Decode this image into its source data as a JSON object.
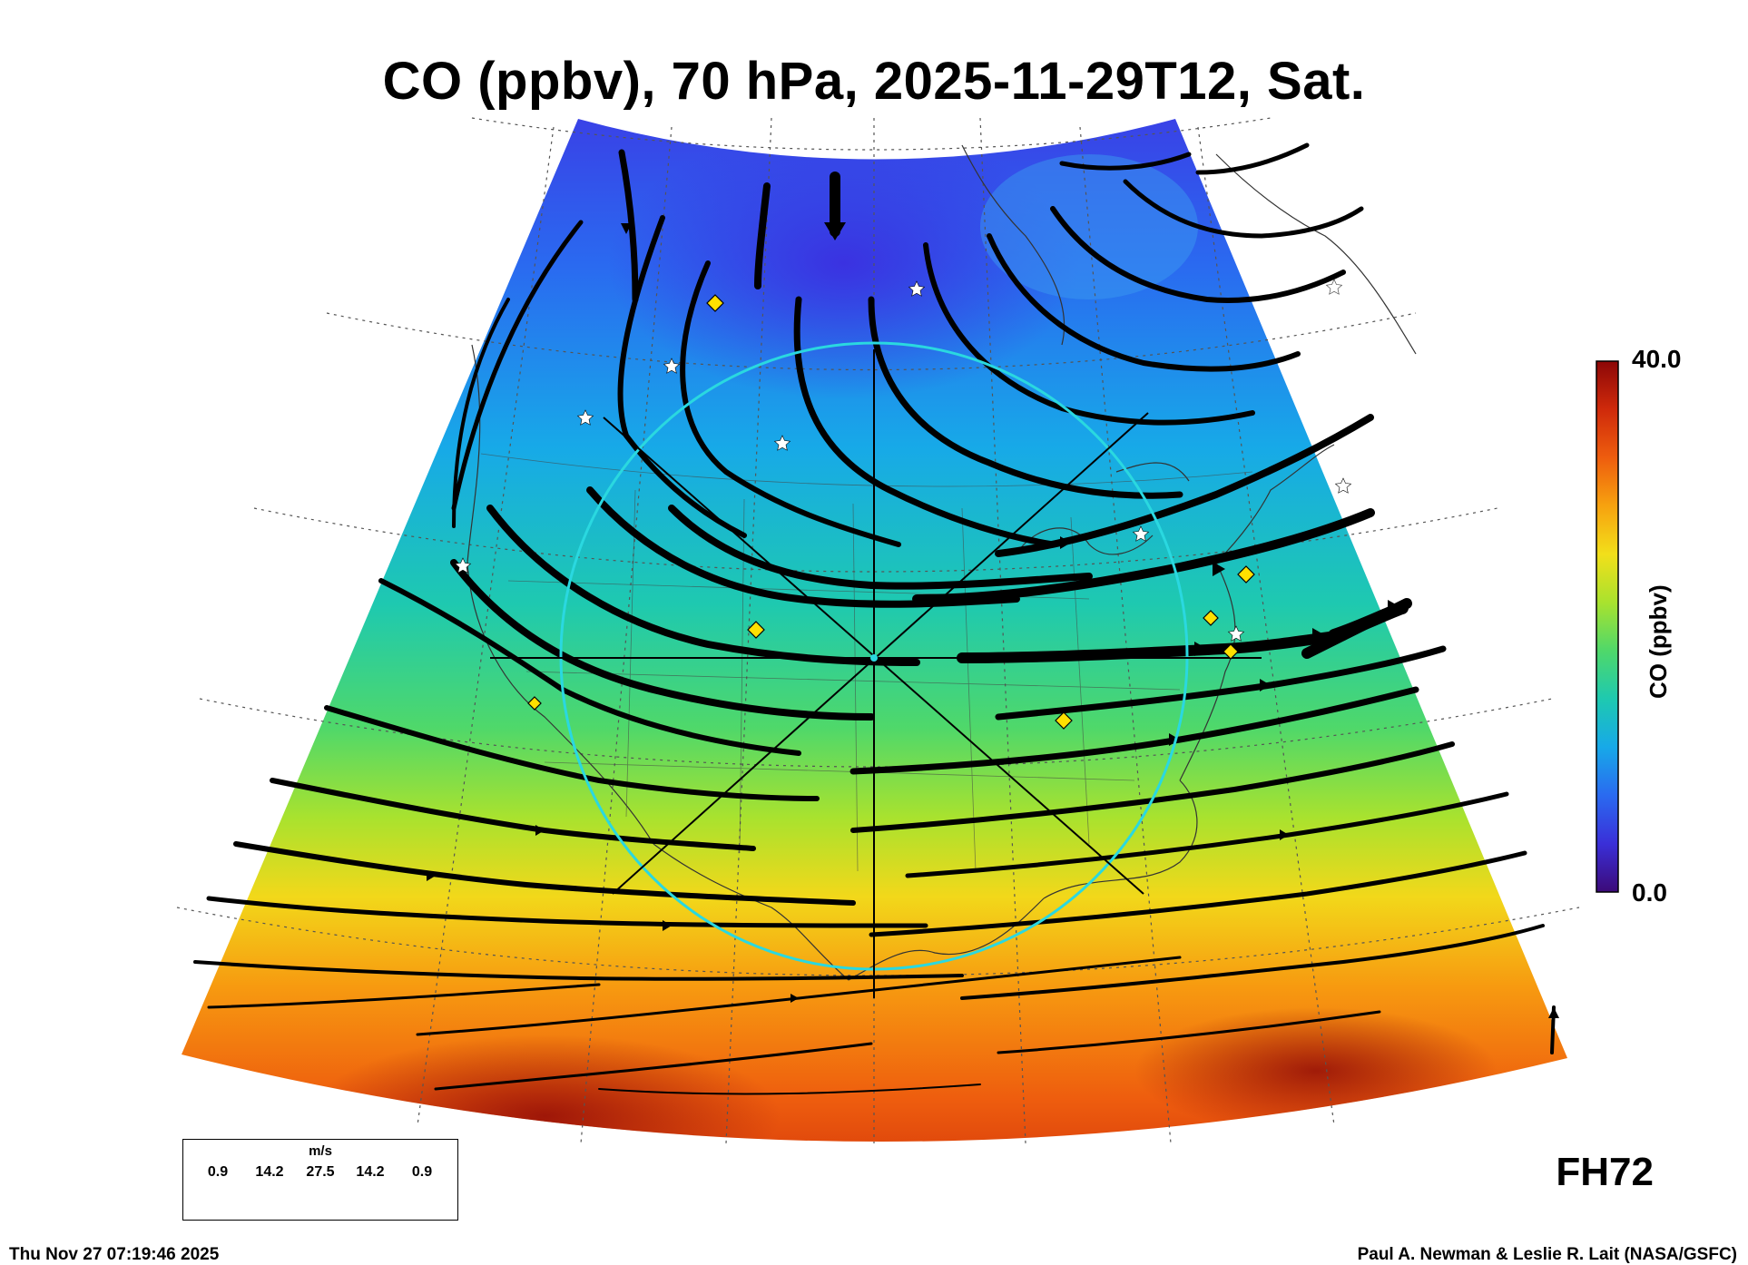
{
  "title": "CO (ppbv), 70 hPa, 2025-11-29T12, Sat.",
  "colorbar": {
    "label": "CO (ppbv)",
    "max_label": "40.0",
    "min_label": "0.0",
    "min": 0.0,
    "max": 40.0,
    "colors": [
      "#3c0a78",
      "#3a2fd8",
      "#2a6af0",
      "#17a9e8",
      "#1ec9b0",
      "#4fd86a",
      "#a9e22e",
      "#f2df1a",
      "#f7a20f",
      "#ee5d0e",
      "#cf2a0b",
      "#8c0707"
    ]
  },
  "forecast_hour": "FH72",
  "wind_legend": {
    "unit": "m/s",
    "values": [
      "0.9",
      "14.2",
      "27.5",
      "14.2",
      "0.9"
    ]
  },
  "footer": {
    "timestamp": "Thu Nov 27 07:19:46 2025",
    "credit": "Paul A. Newman & Leslie R. Lait (NASA/GSFC)"
  },
  "markers": {
    "diamond_color": "#ffe000",
    "star_color": "#ffffff",
    "circle_color": "#2ad8e0"
  }
}
